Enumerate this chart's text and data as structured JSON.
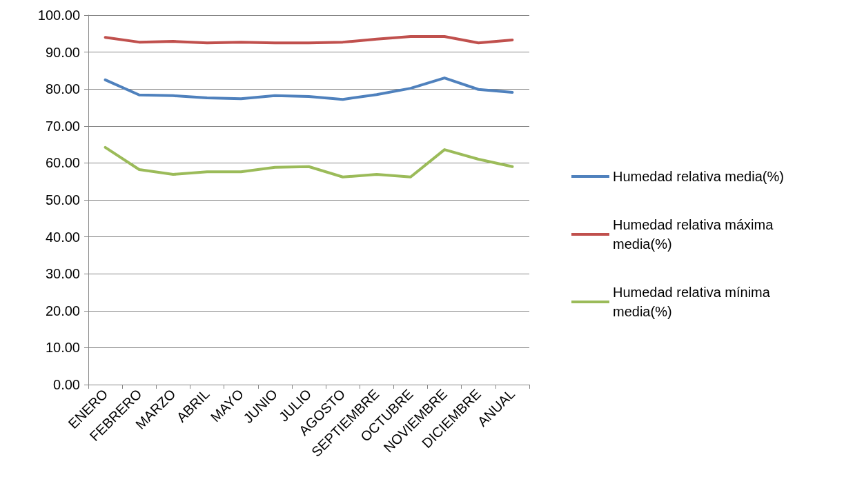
{
  "chart_data": {
    "type": "line",
    "categories": [
      "ENERO",
      "FEBRERO",
      "MARZO",
      "ABRIL",
      "MAYO",
      "JUNIO",
      "JULIO",
      "AGOSTO",
      "SEPTIEMBRE",
      "OCTUBRE",
      "NOVIEMBRE",
      "DICIEMBRE",
      "ANUAL"
    ],
    "series": [
      {
        "name": "Humedad relativa media(%)",
        "color": "#4f81bd",
        "values": [
          82.5,
          78.4,
          78.2,
          77.6,
          77.4,
          78.2,
          78.0,
          77.2,
          78.5,
          80.2,
          83.0,
          79.9,
          79.1
        ]
      },
      {
        "name": "Humedad relativa máxima media(%)",
        "color": "#c0504d",
        "values": [
          94.0,
          92.7,
          92.9,
          92.5,
          92.7,
          92.5,
          92.5,
          92.7,
          93.5,
          94.2,
          94.2,
          92.5,
          93.3
        ]
      },
      {
        "name": "Humedad relativa mínima media(%)",
        "color": "#9bbb59",
        "values": [
          64.2,
          58.2,
          56.9,
          57.6,
          57.6,
          58.8,
          59.0,
          56.2,
          56.9,
          56.2,
          63.6,
          61.0,
          59.0
        ]
      }
    ],
    "ylim": [
      0,
      100
    ],
    "yticks": [
      {
        "value": 0,
        "label": "0.00"
      },
      {
        "value": 10,
        "label": "10.00"
      },
      {
        "value": 20,
        "label": "20.00"
      },
      {
        "value": 30,
        "label": "30.00"
      },
      {
        "value": 40,
        "label": "40.00"
      },
      {
        "value": 50,
        "label": "50.00"
      },
      {
        "value": 60,
        "label": "60.00"
      },
      {
        "value": 70,
        "label": "70.00"
      },
      {
        "value": 80,
        "label": "80.00"
      },
      {
        "value": 90,
        "label": "90.00"
      },
      {
        "value": 100,
        "label": "100.00"
      }
    ],
    "grid": "y",
    "legend": "right",
    "marker": "none",
    "line_style": "solid"
  }
}
